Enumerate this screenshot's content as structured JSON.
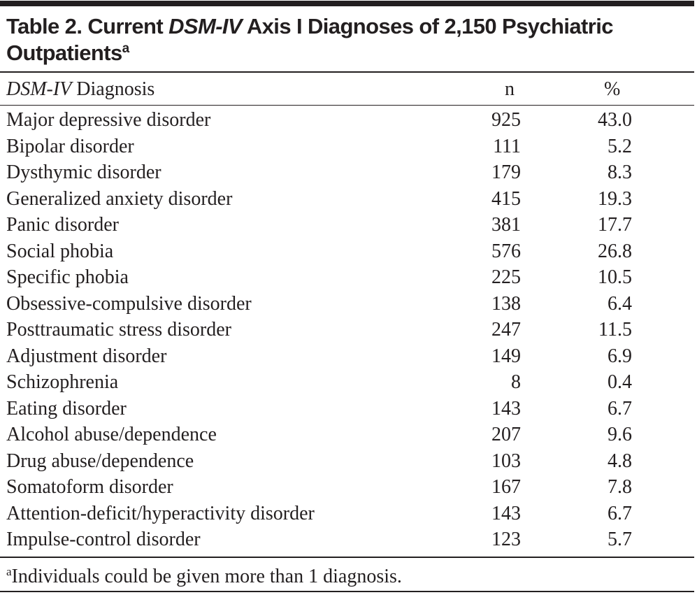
{
  "title": {
    "prefix": "Table 2. Current ",
    "italic": "DSM-IV",
    "suffix": " Axis I Diagnoses of 2,150 Psychiatric",
    "line2": "Outpatients",
    "footnote_marker": "a"
  },
  "header": {
    "diagnosis_italic": "DSM-IV",
    "diagnosis_rest": " Diagnosis",
    "n": "n",
    "percent": "%"
  },
  "rows": [
    {
      "label": "Major depressive disorder",
      "n": "925",
      "pct": "43.0"
    },
    {
      "label": "Bipolar disorder",
      "n": "111",
      "pct": "5.2"
    },
    {
      "label": "Dysthymic disorder",
      "n": "179",
      "pct": "8.3"
    },
    {
      "label": "Generalized anxiety disorder",
      "n": "415",
      "pct": "19.3"
    },
    {
      "label": "Panic disorder",
      "n": "381",
      "pct": "17.7"
    },
    {
      "label": "Social phobia",
      "n": "576",
      "pct": "26.8"
    },
    {
      "label": "Specific phobia",
      "n": "225",
      "pct": "10.5"
    },
    {
      "label": "Obsessive-compulsive disorder",
      "n": "138",
      "pct": "6.4"
    },
    {
      "label": "Posttraumatic stress disorder",
      "n": "247",
      "pct": "11.5"
    },
    {
      "label": "Adjustment disorder",
      "n": "149",
      "pct": "6.9"
    },
    {
      "label": "Schizophrenia",
      "n": "8",
      "pct": "0.4"
    },
    {
      "label": "Eating disorder",
      "n": "143",
      "pct": "6.7"
    },
    {
      "label": "Alcohol abuse/dependence",
      "n": "207",
      "pct": "9.6"
    },
    {
      "label": "Drug abuse/dependence",
      "n": "103",
      "pct": "4.8"
    },
    {
      "label": "Somatoform disorder",
      "n": "167",
      "pct": "7.8"
    },
    {
      "label": "Attention-deficit/hyperactivity disorder",
      "n": "143",
      "pct": "6.7"
    },
    {
      "label": "Impulse-control disorder",
      "n": "123",
      "pct": "5.7"
    }
  ],
  "footnote": {
    "marker": "a",
    "text": "Individuals could be given more than 1 diagnosis."
  }
}
